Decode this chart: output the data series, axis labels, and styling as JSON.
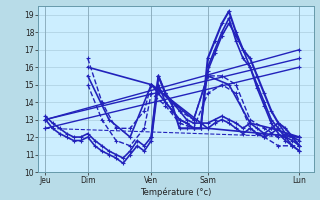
{
  "background_color": "#b8dce8",
  "plot_bg_color": "#cceeff",
  "line_color": "#2222bb",
  "grid_color": "#99bbcc",
  "xlabel": "Température (°c)",
  "ylim": [
    10,
    19.5
  ],
  "yticks": [
    10,
    11,
    12,
    13,
    14,
    15,
    16,
    17,
    18,
    19
  ],
  "xlim": [
    0,
    156
  ],
  "day_labels": [
    "Jeu",
    "Dim",
    "Ven",
    "Sam",
    "Lun"
  ],
  "day_positions": [
    4,
    28,
    64,
    96,
    148
  ],
  "series": [
    {
      "x": [
        4,
        8,
        12,
        16,
        20,
        24,
        28,
        32,
        36,
        40,
        44,
        48,
        52,
        56,
        60,
        64,
        68,
        72,
        76,
        80,
        84,
        88,
        92,
        96,
        100,
        104,
        108,
        112,
        116,
        120,
        124,
        128,
        132,
        136,
        140,
        144,
        148
      ],
      "y": [
        13.0,
        12.5,
        12.2,
        12.0,
        11.8,
        11.8,
        12.0,
        11.5,
        11.2,
        11.0,
        10.8,
        10.5,
        11.0,
        11.5,
        11.2,
        11.8,
        15.0,
        14.0,
        13.5,
        13.0,
        12.8,
        12.5,
        12.5,
        12.5,
        12.8,
        13.0,
        12.8,
        12.5,
        12.2,
        12.5,
        12.2,
        12.0,
        12.2,
        12.5,
        12.0,
        11.8,
        11.5
      ],
      "style": "solid",
      "lw": 1.2
    },
    {
      "x": [
        4,
        8,
        12,
        16,
        20,
        24,
        28,
        32,
        36,
        40,
        44,
        48,
        52,
        56,
        60,
        64,
        68,
        72,
        76,
        80,
        84,
        88,
        92,
        96,
        100,
        104,
        108,
        112,
        116,
        120,
        124,
        128,
        132,
        136,
        140,
        144,
        148
      ],
      "y": [
        13.2,
        12.8,
        12.5,
        12.2,
        12.0,
        12.0,
        12.2,
        11.8,
        11.5,
        11.2,
        11.0,
        10.8,
        11.2,
        11.8,
        11.5,
        12.0,
        15.5,
        14.5,
        14.0,
        13.5,
        13.0,
        12.8,
        12.8,
        12.8,
        13.0,
        13.2,
        13.0,
        12.8,
        12.5,
        12.8,
        12.5,
        12.2,
        12.5,
        12.8,
        12.2,
        12.0,
        11.8
      ],
      "style": "solid",
      "lw": 1.2
    },
    {
      "x": [
        4,
        148
      ],
      "y": [
        13.0,
        17.0
      ],
      "style": "solid",
      "lw": 1.0
    },
    {
      "x": [
        4,
        148
      ],
      "y": [
        13.0,
        16.5
      ],
      "style": "solid",
      "lw": 1.0
    },
    {
      "x": [
        4,
        148
      ],
      "y": [
        12.5,
        16.0
      ],
      "style": "solid",
      "lw": 1.0
    },
    {
      "x": [
        28,
        64,
        96,
        148
      ],
      "y": [
        16.0,
        15.0,
        12.5,
        12.0
      ],
      "style": "solid",
      "lw": 1.2
    },
    {
      "x": [
        28,
        40,
        52,
        64,
        76,
        88,
        96,
        108,
        120,
        132,
        148
      ],
      "y": [
        15.5,
        13.0,
        12.0,
        15.0,
        14.0,
        13.0,
        15.5,
        15.0,
        12.8,
        12.5,
        12.0
      ],
      "style": "solid",
      "lw": 1.2
    },
    {
      "x": [
        28,
        36,
        44,
        52,
        60,
        64,
        72,
        80,
        88,
        96,
        104,
        112,
        120,
        128,
        136,
        148
      ],
      "y": [
        16.5,
        14.0,
        12.5,
        12.5,
        13.5,
        15.0,
        14.5,
        13.5,
        13.0,
        15.5,
        15.5,
        15.0,
        13.0,
        12.5,
        12.0,
        12.0
      ],
      "style": "dashed",
      "lw": 1.0
    },
    {
      "x": [
        28,
        36,
        44,
        52,
        60,
        64,
        72,
        80,
        88,
        96,
        104,
        112,
        120,
        128,
        136,
        148
      ],
      "y": [
        15.0,
        13.0,
        11.8,
        11.5,
        12.5,
        14.5,
        13.8,
        12.8,
        12.5,
        14.5,
        15.0,
        14.5,
        12.5,
        12.0,
        11.5,
        11.5
      ],
      "style": "dashed",
      "lw": 1.0
    },
    {
      "x": [
        64,
        68,
        72,
        76,
        80,
        84,
        88,
        92,
        96,
        100,
        104,
        108,
        112,
        116,
        120,
        124,
        128,
        132,
        136,
        140,
        144,
        148
      ],
      "y": [
        12.0,
        15.5,
        14.5,
        13.8,
        12.5,
        12.5,
        12.5,
        12.5,
        16.5,
        17.5,
        18.5,
        19.2,
        18.0,
        17.0,
        16.5,
        15.5,
        14.5,
        13.5,
        12.8,
        12.5,
        12.0,
        11.5
      ],
      "style": "solid",
      "lw": 1.5
    },
    {
      "x": [
        96,
        100,
        104,
        108,
        112,
        116,
        120,
        124,
        128,
        132,
        136,
        140,
        144,
        148
      ],
      "y": [
        16.0,
        17.0,
        18.0,
        18.8,
        17.5,
        16.5,
        16.0,
        15.0,
        14.0,
        13.0,
        12.5,
        12.0,
        11.5,
        11.2
      ],
      "style": "solid",
      "lw": 1.2
    },
    {
      "x": [
        4,
        148
      ],
      "y": [
        12.5,
        12.0
      ],
      "style": "dashed",
      "lw": 0.8
    },
    {
      "x": [
        64,
        68,
        72,
        76,
        80,
        84,
        88,
        92,
        96,
        100,
        104,
        108,
        112,
        116,
        120,
        124,
        128,
        132,
        136,
        140,
        144,
        148
      ],
      "y": [
        15.0,
        14.5,
        14.0,
        13.5,
        13.0,
        12.8,
        12.5,
        12.5,
        15.8,
        16.8,
        17.8,
        18.5,
        17.8,
        17.0,
        16.0,
        14.8,
        13.8,
        12.8,
        12.2,
        11.8,
        11.5,
        11.2
      ],
      "style": "solid",
      "lw": 1.2
    }
  ]
}
